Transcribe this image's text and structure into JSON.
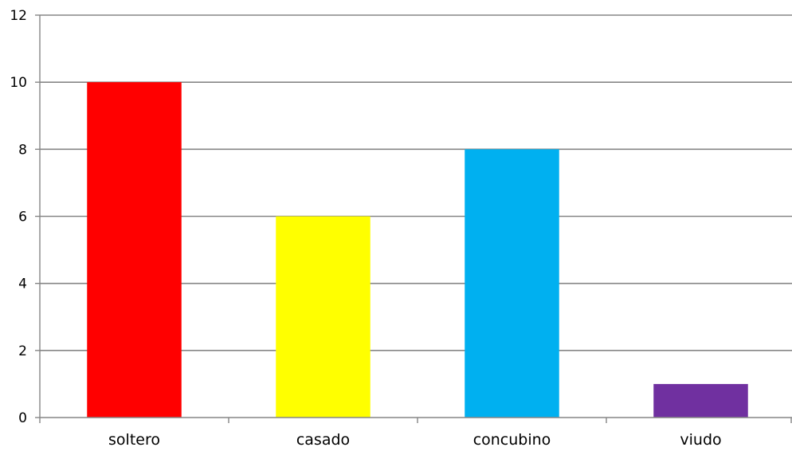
{
  "chart_data": {
    "type": "bar",
    "categories": [
      "soltero",
      "casado",
      "concubino",
      "viudo"
    ],
    "values": [
      10,
      6,
      8,
      1
    ],
    "colors": [
      "#ff0000",
      "#ffff00",
      "#00b0f0",
      "#7030a0"
    ],
    "ylim": [
      0,
      12
    ],
    "yticks": [
      0,
      2,
      4,
      6,
      8,
      10,
      12
    ],
    "grid": true,
    "legend": "none",
    "title": "",
    "xlabel": "",
    "ylabel": ""
  }
}
